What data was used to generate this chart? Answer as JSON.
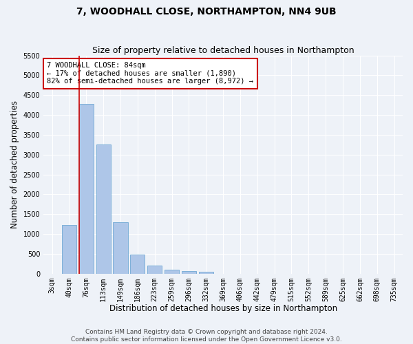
{
  "title": "7, WOODHALL CLOSE, NORTHAMPTON, NN4 9UB",
  "subtitle": "Size of property relative to detached houses in Northampton",
  "xlabel": "Distribution of detached houses by size in Northampton",
  "ylabel": "Number of detached properties",
  "categories": [
    "3sqm",
    "40sqm",
    "76sqm",
    "113sqm",
    "149sqm",
    "186sqm",
    "223sqm",
    "259sqm",
    "296sqm",
    "332sqm",
    "369sqm",
    "406sqm",
    "442sqm",
    "479sqm",
    "515sqm",
    "552sqm",
    "589sqm",
    "625sqm",
    "662sqm",
    "698sqm",
    "735sqm"
  ],
  "bar_heights": [
    0,
    1230,
    4280,
    3250,
    1290,
    480,
    200,
    100,
    70,
    55,
    0,
    0,
    0,
    0,
    0,
    0,
    0,
    0,
    0,
    0,
    0
  ],
  "bar_color": "#aec6e8",
  "bar_edge_color": "#6fa8d4",
  "ylim": [
    0,
    5500
  ],
  "yticks": [
    0,
    500,
    1000,
    1500,
    2000,
    2500,
    3000,
    3500,
    4000,
    4500,
    5000,
    5500
  ],
  "vline_index": 2,
  "vline_color": "#cc0000",
  "annotation_text": "7 WOODHALL CLOSE: 84sqm\n← 17% of detached houses are smaller (1,890)\n82% of semi-detached houses are larger (8,972) →",
  "annotation_box_color": "#ffffff",
  "annotation_box_edgecolor": "#cc0000",
  "footer_line1": "Contains HM Land Registry data © Crown copyright and database right 2024.",
  "footer_line2": "Contains public sector information licensed under the Open Government Licence v3.0.",
  "background_color": "#eef2f8",
  "grid_color": "#ffffff",
  "title_fontsize": 10,
  "subtitle_fontsize": 9,
  "axis_label_fontsize": 8.5,
  "tick_fontsize": 7,
  "footer_fontsize": 6.5,
  "annotation_fontsize": 7.5
}
